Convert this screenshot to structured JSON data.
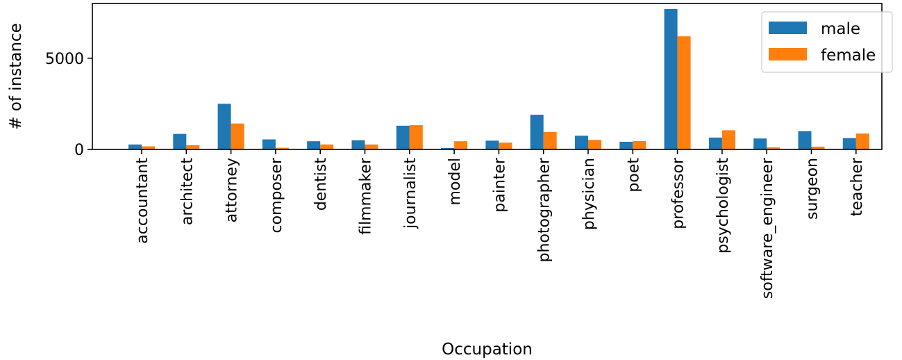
{
  "chart_data": {
    "type": "bar",
    "xlabel": "Occupation",
    "ylabel": "# of instance",
    "ylim": [
      0,
      8000
    ],
    "yticks": [
      0,
      5000
    ],
    "categories": [
      "accountant",
      "architect",
      "attorney",
      "composer",
      "dentist",
      "filmmaker",
      "journalist",
      "model",
      "painter",
      "photographer",
      "physician",
      "poet",
      "professor",
      "psychologist",
      "software_engineer",
      "surgeon",
      "teacher"
    ],
    "series": [
      {
        "name": "male",
        "color": "#1f77b4",
        "values": [
          270,
          850,
          2500,
          550,
          450,
          500,
          1300,
          80,
          480,
          1900,
          750,
          420,
          7700,
          650,
          600,
          1000,
          620
        ]
      },
      {
        "name": "female",
        "color": "#ff7f0e",
        "values": [
          170,
          230,
          1420,
          90,
          270,
          270,
          1330,
          450,
          370,
          960,
          520,
          460,
          6200,
          1050,
          110,
          150,
          870
        ]
      }
    ],
    "grid": false,
    "legend_position": "top-right"
  }
}
